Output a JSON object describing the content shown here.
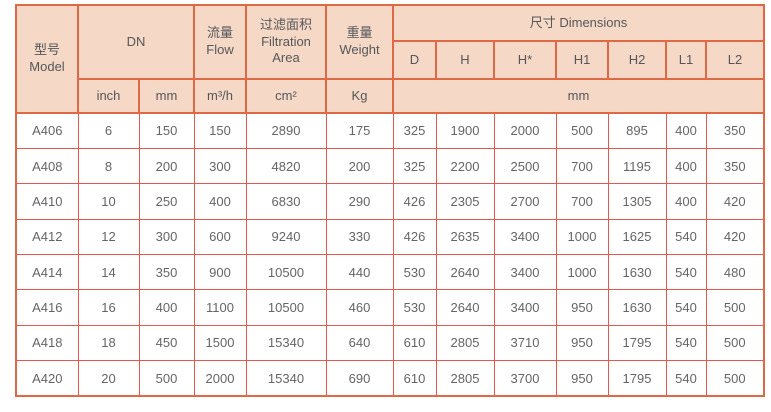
{
  "page": {
    "background": "#ffffff"
  },
  "colors": {
    "header_bg": "#f5d8c5",
    "border_strong": "#df6845",
    "border_light": "#e25a4e",
    "header_text": "#55575a",
    "body_text": "#636567"
  },
  "table": {
    "header": {
      "model_zh": "型号",
      "model_en": "Model",
      "dn": "DN",
      "flow_zh": "流量",
      "flow_en": "Flow",
      "filtration_zh": "过滤面积",
      "filtration_en_line1": "Filtration",
      "filtration_en_line2": "Area",
      "weight_zh": "重量",
      "weight_en": "Weight",
      "dimensions": "尺寸 Dimensions",
      "dim_cols": [
        "D",
        "H",
        "H*",
        "H1",
        "H2",
        "L1",
        "L2"
      ],
      "unit_inch": "inch",
      "unit_mm": "mm",
      "unit_flow": "m³/h",
      "unit_area": "cm²",
      "unit_weight": "Kg",
      "unit_dims": "mm"
    },
    "rows": [
      {
        "cells": [
          "A406",
          "6",
          "150",
          "150",
          "2890",
          "175",
          "325",
          "1900",
          "2000",
          "500",
          "895",
          "400",
          "350"
        ]
      },
      {
        "cells": [
          "A408",
          "8",
          "200",
          "300",
          "4820",
          "200",
          "325",
          "2200",
          "2500",
          "700",
          "1195",
          "400",
          "350"
        ]
      },
      {
        "cells": [
          "A410",
          "10",
          "250",
          "400",
          "6830",
          "290",
          "426",
          "2305",
          "2700",
          "700",
          "1305",
          "400",
          "420"
        ]
      },
      {
        "cells": [
          "A412",
          "12",
          "300",
          "600",
          "9240",
          "330",
          "426",
          "2635",
          "3400",
          "1000",
          "1625",
          "540",
          "420"
        ]
      },
      {
        "cells": [
          "A414",
          "14",
          "350",
          "900",
          "10500",
          "440",
          "530",
          "2640",
          "3400",
          "1000",
          "1630",
          "540",
          "480"
        ]
      },
      {
        "cells": [
          "A416",
          "16",
          "400",
          "1100",
          "10500",
          "460",
          "530",
          "2640",
          "3400",
          "950",
          "1630",
          "540",
          "500"
        ]
      },
      {
        "cells": [
          "A418",
          "18",
          "450",
          "1500",
          "15340",
          "640",
          "610",
          "2805",
          "3710",
          "950",
          "1795",
          "540",
          "500"
        ]
      },
      {
        "cells": [
          "A420",
          "20",
          "500",
          "2000",
          "15340",
          "690",
          "610",
          "2805",
          "3700",
          "950",
          "1795",
          "540",
          "500"
        ]
      }
    ]
  }
}
